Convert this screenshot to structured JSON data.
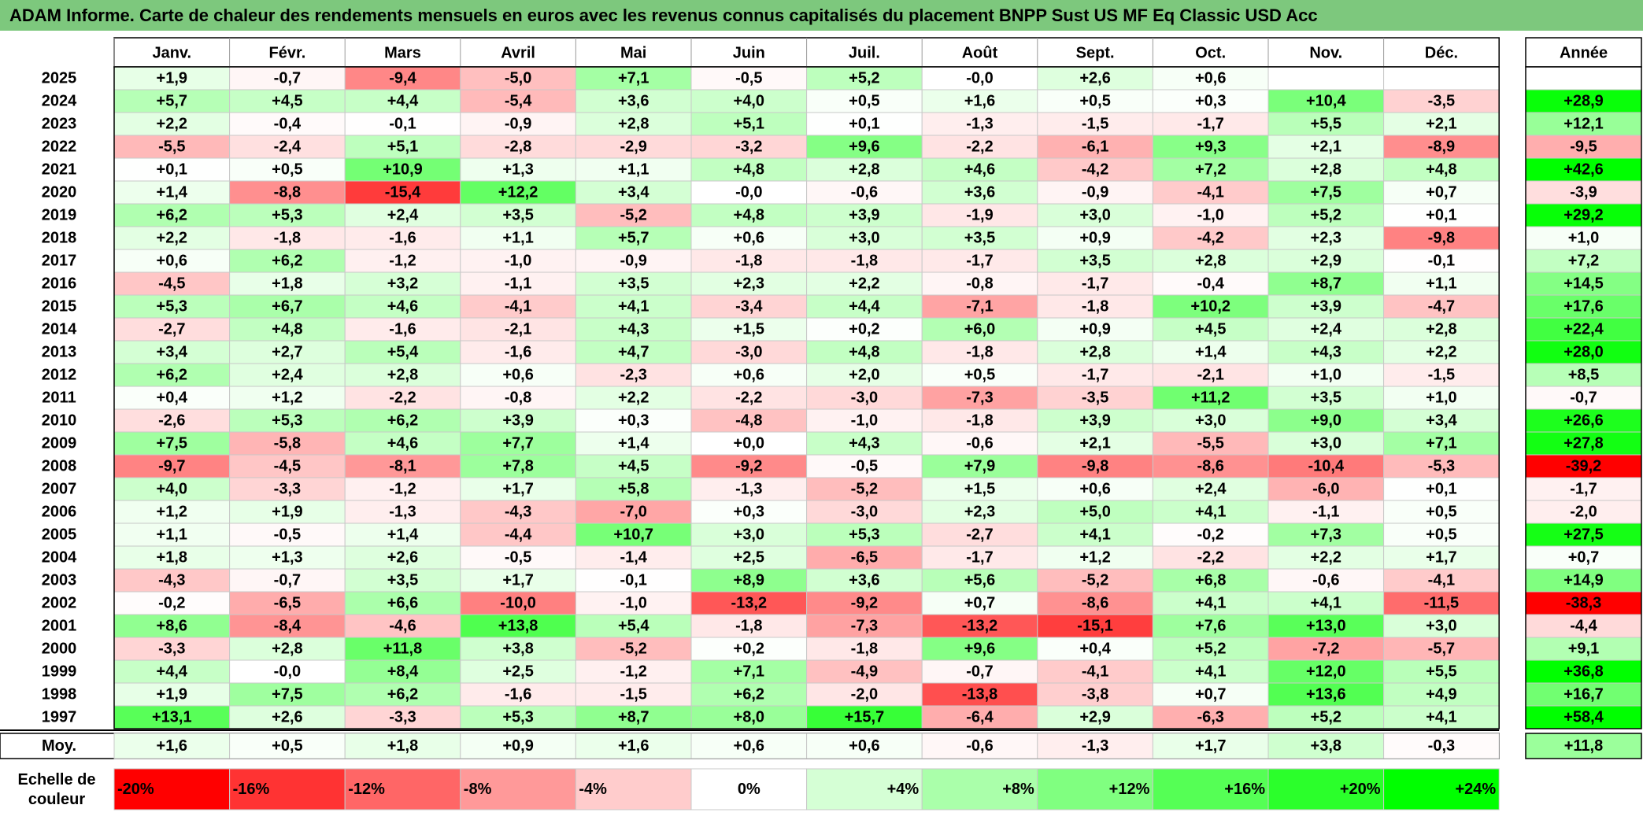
{
  "title": "ADAM Informe. Carte de chaleur des rendements mensuels en euros avec les revenus connus capitalisés du placement BNPP Sust US MF Eq Classic USD Acc",
  "chart_data": {
    "type": "heatmap",
    "months": [
      "Janv.",
      "Févr.",
      "Mars",
      "Avril",
      "Mai",
      "Juin",
      "Juil.",
      "Août",
      "Sept.",
      "Oct.",
      "Nov.",
      "Déc."
    ],
    "year_header": "Année",
    "rows": [
      {
        "year": "2025",
        "values": [
          "+1,9",
          "-0,7",
          "-9,4",
          "-5,0",
          "+7,1",
          "-0,5",
          "+5,2",
          "-0,0",
          "+2,6",
          "+0,6",
          "",
          ""
        ],
        "annual": ""
      },
      {
        "year": "2024",
        "values": [
          "+5,7",
          "+4,5",
          "+4,4",
          "-5,4",
          "+3,6",
          "+4,0",
          "+0,5",
          "+1,6",
          "+0,5",
          "+0,3",
          "+10,4",
          "-3,5"
        ],
        "annual": "+28,9"
      },
      {
        "year": "2023",
        "values": [
          "+2,2",
          "-0,4",
          "-0,1",
          "-0,9",
          "+2,8",
          "+5,1",
          "+0,1",
          "-1,3",
          "-1,5",
          "-1,7",
          "+5,5",
          "+2,1"
        ],
        "annual": "+12,1"
      },
      {
        "year": "2022",
        "values": [
          "-5,5",
          "-2,4",
          "+5,1",
          "-2,8",
          "-2,9",
          "-3,2",
          "+9,6",
          "-2,2",
          "-6,1",
          "+9,3",
          "+2,1",
          "-8,9"
        ],
        "annual": "-9,5"
      },
      {
        "year": "2021",
        "values": [
          "+0,1",
          "+0,5",
          "+10,9",
          "+1,3",
          "+1,1",
          "+4,8",
          "+2,8",
          "+4,6",
          "-4,2",
          "+7,2",
          "+2,8",
          "+4,8"
        ],
        "annual": "+42,6"
      },
      {
        "year": "2020",
        "values": [
          "+1,4",
          "-8,8",
          "-15,4",
          "+12,2",
          "+3,4",
          "-0,0",
          "-0,6",
          "+3,6",
          "-0,9",
          "-4,1",
          "+7,5",
          "+0,7"
        ],
        "annual": "-3,9"
      },
      {
        "year": "2019",
        "values": [
          "+6,2",
          "+5,3",
          "+2,4",
          "+3,5",
          "-5,2",
          "+4,8",
          "+3,9",
          "-1,9",
          "+3,0",
          "-1,0",
          "+5,2",
          "+0,1"
        ],
        "annual": "+29,2"
      },
      {
        "year": "2018",
        "values": [
          "+2,2",
          "-1,8",
          "-1,6",
          "+1,1",
          "+5,7",
          "+0,6",
          "+3,0",
          "+3,5",
          "+0,9",
          "-4,2",
          "+2,3",
          "-9,8"
        ],
        "annual": "+1,0"
      },
      {
        "year": "2017",
        "values": [
          "+0,6",
          "+6,2",
          "-1,2",
          "-1,0",
          "-0,9",
          "-1,8",
          "-1,8",
          "-1,7",
          "+3,5",
          "+2,8",
          "+2,9",
          "-0,1"
        ],
        "annual": "+7,2"
      },
      {
        "year": "2016",
        "values": [
          "-4,5",
          "+1,8",
          "+3,2",
          "-1,1",
          "+3,5",
          "+2,3",
          "+2,2",
          "-0,8",
          "-1,7",
          "-0,4",
          "+8,7",
          "+1,1"
        ],
        "annual": "+14,5"
      },
      {
        "year": "2015",
        "values": [
          "+5,3",
          "+6,7",
          "+4,6",
          "-4,1",
          "+4,1",
          "-3,4",
          "+4,4",
          "-7,1",
          "-1,8",
          "+10,2",
          "+3,9",
          "-4,7"
        ],
        "annual": "+17,6"
      },
      {
        "year": "2014",
        "values": [
          "-2,7",
          "+4,8",
          "-1,6",
          "-2,1",
          "+4,3",
          "+1,5",
          "+0,2",
          "+6,0",
          "+0,9",
          "+4,5",
          "+2,4",
          "+2,8"
        ],
        "annual": "+22,4"
      },
      {
        "year": "2013",
        "values": [
          "+3,4",
          "+2,7",
          "+5,4",
          "-1,6",
          "+4,7",
          "-3,0",
          "+4,8",
          "-1,8",
          "+2,8",
          "+1,4",
          "+4,3",
          "+2,2"
        ],
        "annual": "+28,0"
      },
      {
        "year": "2012",
        "values": [
          "+6,2",
          "+2,4",
          "+2,8",
          "+0,6",
          "-2,3",
          "+0,6",
          "+2,0",
          "+0,5",
          "-1,7",
          "-2,1",
          "+1,0",
          "-1,5"
        ],
        "annual": "+8,5"
      },
      {
        "year": "2011",
        "values": [
          "+0,4",
          "+1,2",
          "-2,2",
          "-0,8",
          "+2,2",
          "-2,2",
          "-3,0",
          "-7,3",
          "-3,5",
          "+11,2",
          "+3,5",
          "+1,0"
        ],
        "annual": "-0,7"
      },
      {
        "year": "2010",
        "values": [
          "-2,6",
          "+5,3",
          "+6,2",
          "+3,9",
          "+0,3",
          "-4,8",
          "-1,0",
          "-1,8",
          "+3,9",
          "+3,0",
          "+9,0",
          "+3,4"
        ],
        "annual": "+26,6"
      },
      {
        "year": "2009",
        "values": [
          "+7,5",
          "-5,8",
          "+4,6",
          "+7,7",
          "+1,4",
          "+0,0",
          "+4,3",
          "-0,6",
          "+2,1",
          "-5,5",
          "+3,0",
          "+7,1"
        ],
        "annual": "+27,8"
      },
      {
        "year": "2008",
        "values": [
          "-9,7",
          "-4,5",
          "-8,1",
          "+7,8",
          "+4,5",
          "-9,2",
          "-0,5",
          "+7,9",
          "-9,8",
          "-8,6",
          "-10,4",
          "-5,3"
        ],
        "annual": "-39,2"
      },
      {
        "year": "2007",
        "values": [
          "+4,0",
          "-3,3",
          "-1,2",
          "+1,7",
          "+5,8",
          "-1,3",
          "-5,2",
          "+1,5",
          "+0,6",
          "+2,4",
          "-6,0",
          "+0,1"
        ],
        "annual": "-1,7"
      },
      {
        "year": "2006",
        "values": [
          "+1,2",
          "+1,9",
          "-1,3",
          "-4,3",
          "-7,0",
          "+0,3",
          "-3,0",
          "+2,3",
          "+5,0",
          "+4,1",
          "-1,1",
          "+0,5"
        ],
        "annual": "-2,0"
      },
      {
        "year": "2005",
        "values": [
          "+1,1",
          "-0,5",
          "+1,4",
          "-4,4",
          "+10,7",
          "+3,0",
          "+5,3",
          "-2,7",
          "+4,1",
          "-0,2",
          "+7,3",
          "+0,5"
        ],
        "annual": "+27,5"
      },
      {
        "year": "2004",
        "values": [
          "+1,8",
          "+1,3",
          "+2,6",
          "-0,5",
          "-1,4",
          "+2,5",
          "-6,5",
          "-1,7",
          "+1,2",
          "-2,2",
          "+2,2",
          "+1,7"
        ],
        "annual": "+0,7"
      },
      {
        "year": "2003",
        "values": [
          "-4,3",
          "-0,7",
          "+3,5",
          "+1,7",
          "-0,1",
          "+8,9",
          "+3,6",
          "+5,6",
          "-5,2",
          "+6,8",
          "-0,6",
          "-4,1"
        ],
        "annual": "+14,9"
      },
      {
        "year": "2002",
        "values": [
          "-0,2",
          "-6,5",
          "+6,6",
          "-10,0",
          "-1,0",
          "-13,2",
          "-9,2",
          "+0,7",
          "-8,6",
          "+4,1",
          "+4,1",
          "-11,5"
        ],
        "annual": "-38,3"
      },
      {
        "year": "2001",
        "values": [
          "+8,6",
          "-8,4",
          "-4,6",
          "+13,8",
          "+5,4",
          "-1,8",
          "-7,3",
          "-13,2",
          "-15,1",
          "+7,6",
          "+13,0",
          "+3,0"
        ],
        "annual": "-4,4"
      },
      {
        "year": "2000",
        "values": [
          "-3,3",
          "+2,8",
          "+11,8",
          "+3,8",
          "-5,2",
          "+0,2",
          "-1,8",
          "+9,6",
          "+0,4",
          "+5,2",
          "-7,2",
          "-5,7"
        ],
        "annual": "+9,1"
      },
      {
        "year": "1999",
        "values": [
          "+4,4",
          "-0,0",
          "+8,4",
          "+2,5",
          "-1,2",
          "+7,1",
          "-4,9",
          "-0,7",
          "-4,1",
          "+4,1",
          "+12,0",
          "+5,5"
        ],
        "annual": "+36,8"
      },
      {
        "year": "1998",
        "values": [
          "+1,9",
          "+7,5",
          "+6,2",
          "-1,6",
          "-1,5",
          "+6,2",
          "-2,0",
          "-13,8",
          "-3,8",
          "+0,7",
          "+13,6",
          "+4,9"
        ],
        "annual": "+16,7"
      },
      {
        "year": "1997",
        "values": [
          "+13,1",
          "+2,6",
          "-3,3",
          "+5,3",
          "+8,7",
          "+8,0",
          "+15,7",
          "-6,4",
          "+2,9",
          "-6,3",
          "+5,2",
          "+4,1"
        ],
        "annual": "+58,4"
      }
    ],
    "average": {
      "label": "Moy.",
      "values": [
        "+1,6",
        "+0,5",
        "+1,8",
        "+0,9",
        "+1,6",
        "+0,6",
        "+0,6",
        "-0,6",
        "-1,3",
        "+1,7",
        "+3,8",
        "-0,3"
      ],
      "annual": "+11,8"
    },
    "color_scale": {
      "label": "Echelle de couleur",
      "stops": [
        {
          "label": "-20%",
          "color": "#ff0000"
        },
        {
          "label": "-16%",
          "color": "#ff3333"
        },
        {
          "label": "-12%",
          "color": "#ff6666"
        },
        {
          "label": "-8%",
          "color": "#ff9999"
        },
        {
          "label": "-4%",
          "color": "#ffcccc"
        },
        {
          "label": "0%",
          "color": "#ffffff"
        },
        {
          "label": "+4%",
          "color": "#d5ffd5"
        },
        {
          "label": "+8%",
          "color": "#aaffaa"
        },
        {
          "label": "+12%",
          "color": "#80ff80"
        },
        {
          "label": "+16%",
          "color": "#55ff55"
        },
        {
          "label": "+20%",
          "color": "#2bff2b"
        },
        {
          "label": "+24%",
          "color": "#00ff00"
        }
      ]
    }
  }
}
